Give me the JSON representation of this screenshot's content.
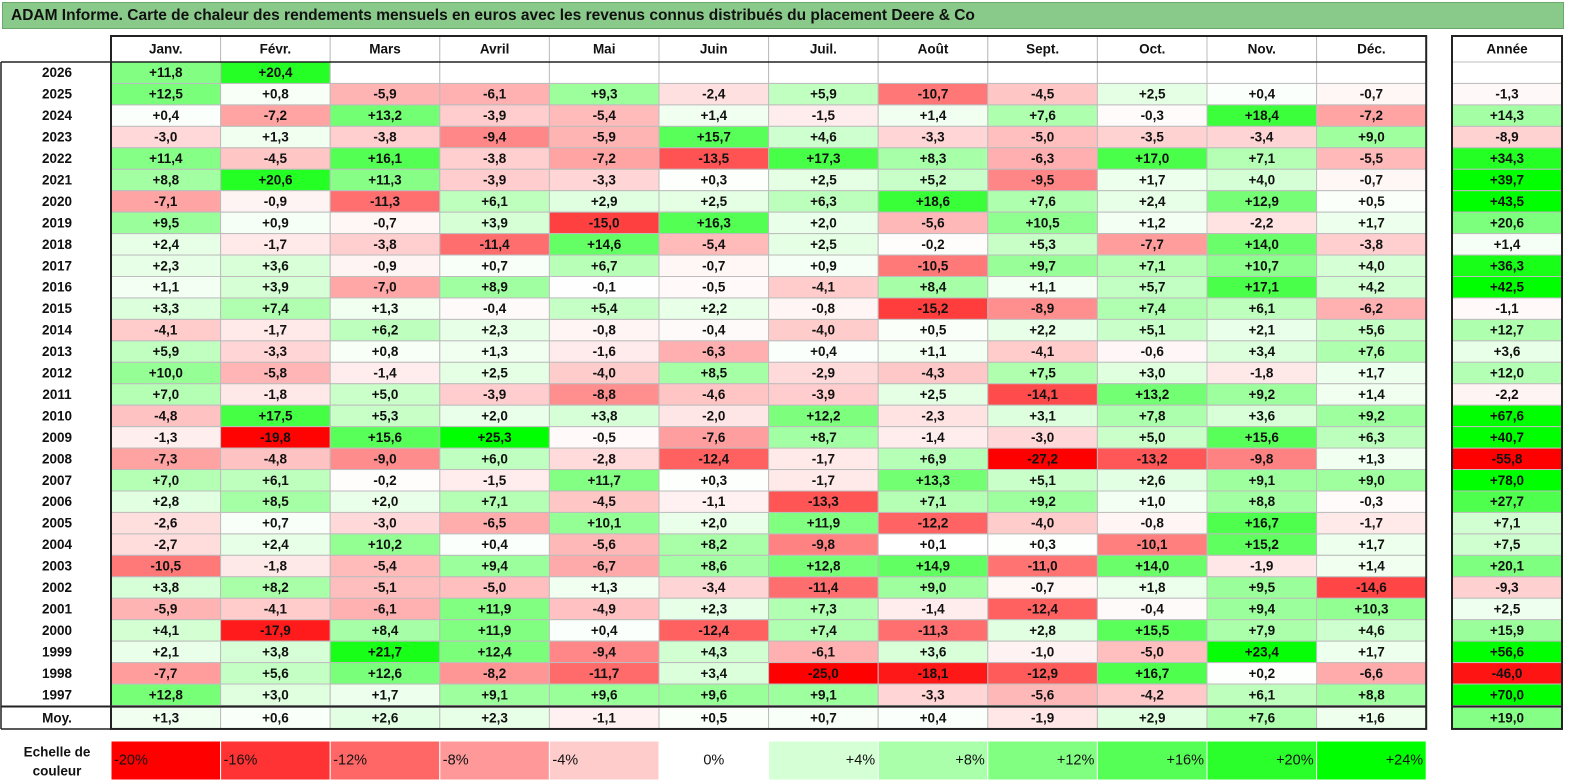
{
  "title": "ADAM Informe. Carte de chaleur des rendements mensuels en euros avec les revenus connus distribués du placement Deere & Co",
  "chart_data": {
    "type": "heatmap",
    "title": "ADAM Informe. Carte de chaleur des rendements mensuels en euros avec les revenus connus distribués du placement Deere & Co",
    "columns": [
      "Janv.",
      "Févr.",
      "Mars",
      "Avril",
      "Mai",
      "Juin",
      "Juil.",
      "Août",
      "Sept.",
      "Oct.",
      "Nov.",
      "Déc."
    ],
    "year_column": "Année",
    "rows": [
      {
        "label": "2026",
        "values": [
          11.8,
          20.4,
          null,
          null,
          null,
          null,
          null,
          null,
          null,
          null,
          null,
          null
        ],
        "annual": null
      },
      {
        "label": "2025",
        "values": [
          12.5,
          0.8,
          -5.9,
          -6.1,
          9.3,
          -2.4,
          5.9,
          -10.7,
          -4.5,
          2.5,
          0.4,
          -0.7
        ],
        "annual": -1.3
      },
      {
        "label": "2024",
        "values": [
          0.4,
          -7.2,
          13.2,
          -3.9,
          -5.4,
          1.4,
          -1.5,
          1.4,
          7.6,
          -0.3,
          18.4,
          -7.2
        ],
        "annual": 14.3
      },
      {
        "label": "2023",
        "values": [
          -3.0,
          1.3,
          -3.8,
          -9.4,
          -5.9,
          15.7,
          4.6,
          -3.3,
          -5.0,
          -3.5,
          -3.4,
          9.0
        ],
        "annual": -8.9
      },
      {
        "label": "2022",
        "values": [
          11.4,
          -4.5,
          16.1,
          -3.8,
          -7.2,
          -13.5,
          17.3,
          8.3,
          -6.3,
          17.0,
          7.1,
          -5.5
        ],
        "annual": 34.3
      },
      {
        "label": "2021",
        "values": [
          8.8,
          20.6,
          11.3,
          -3.9,
          -3.3,
          0.3,
          2.5,
          5.2,
          -9.5,
          1.7,
          4.0,
          -0.7
        ],
        "annual": 39.7
      },
      {
        "label": "2020",
        "values": [
          -7.1,
          -0.9,
          -11.3,
          6.1,
          2.9,
          2.5,
          6.3,
          18.6,
          7.6,
          2.4,
          12.9,
          0.5
        ],
        "annual": 43.5
      },
      {
        "label": "2019",
        "values": [
          9.5,
          0.9,
          -0.7,
          3.9,
          -15.0,
          16.3,
          2.0,
          -5.6,
          10.5,
          1.2,
          -2.2,
          1.7
        ],
        "annual": 20.6
      },
      {
        "label": "2018",
        "values": [
          2.4,
          -1.7,
          -3.8,
          -11.4,
          14.6,
          -5.4,
          2.5,
          -0.2,
          5.3,
          -7.7,
          14.0,
          -3.8
        ],
        "annual": 1.4
      },
      {
        "label": "2017",
        "values": [
          2.3,
          3.6,
          -0.9,
          0.7,
          6.7,
          -0.7,
          0.9,
          -10.5,
          9.7,
          7.1,
          10.7,
          4.0
        ],
        "annual": 36.3
      },
      {
        "label": "2016",
        "values": [
          1.1,
          3.9,
          -7.0,
          8.9,
          -0.1,
          -0.5,
          -4.1,
          8.4,
          1.1,
          5.7,
          17.1,
          4.2
        ],
        "annual": 42.5
      },
      {
        "label": "2015",
        "values": [
          3.3,
          7.4,
          1.3,
          -0.4,
          5.4,
          2.2,
          -0.8,
          -15.2,
          -8.9,
          7.4,
          6.1,
          -6.2
        ],
        "annual": -1.1
      },
      {
        "label": "2014",
        "values": [
          -4.1,
          -1.7,
          6.2,
          2.3,
          -0.8,
          -0.4,
          -4.0,
          0.5,
          2.2,
          5.1,
          2.1,
          5.6
        ],
        "annual": 12.7
      },
      {
        "label": "2013",
        "values": [
          5.9,
          -3.3,
          0.8,
          1.3,
          -1.6,
          -6.3,
          0.4,
          1.1,
          -4.1,
          -0.6,
          3.4,
          7.6
        ],
        "annual": 3.6
      },
      {
        "label": "2012",
        "values": [
          10.0,
          -5.8,
          -1.4,
          2.5,
          -4.0,
          8.5,
          -2.9,
          -4.3,
          7.5,
          3.0,
          -1.8,
          1.7
        ],
        "annual": 12.0
      },
      {
        "label": "2011",
        "values": [
          7.0,
          -1.8,
          5.0,
          -3.9,
          -8.8,
          -4.6,
          -3.9,
          2.5,
          -14.1,
          13.2,
          9.2,
          1.4
        ],
        "annual": -2.2
      },
      {
        "label": "2010",
        "values": [
          -4.8,
          17.5,
          5.3,
          2.0,
          3.8,
          -2.0,
          12.2,
          -2.3,
          3.1,
          7.8,
          3.6,
          9.2
        ],
        "annual": 67.6
      },
      {
        "label": "2009",
        "values": [
          -1.3,
          -19.8,
          15.6,
          25.3,
          -0.5,
          -7.6,
          8.7,
          -1.4,
          -3.0,
          5.0,
          15.6,
          6.3
        ],
        "annual": 40.7
      },
      {
        "label": "2008",
        "values": [
          -7.3,
          -4.8,
          -9.0,
          6.0,
          -2.8,
          -12.4,
          -1.7,
          6.9,
          -27.2,
          -13.2,
          -9.8,
          1.3
        ],
        "annual": -55.8
      },
      {
        "label": "2007",
        "values": [
          7.0,
          6.1,
          -0.2,
          -1.5,
          11.7,
          0.3,
          -1.7,
          13.3,
          5.1,
          2.6,
          9.1,
          9.0
        ],
        "annual": 78.0
      },
      {
        "label": "2006",
        "values": [
          2.8,
          8.5,
          2.0,
          7.1,
          -4.5,
          -1.1,
          -13.3,
          7.1,
          9.2,
          1.0,
          8.8,
          -0.3
        ],
        "annual": 27.7
      },
      {
        "label": "2005",
        "values": [
          -2.6,
          0.7,
          -3.0,
          -6.5,
          10.1,
          2.0,
          11.9,
          -12.2,
          -4.0,
          -0.8,
          16.7,
          -1.7
        ],
        "annual": 7.1
      },
      {
        "label": "2004",
        "values": [
          -2.7,
          2.4,
          10.2,
          0.4,
          -5.6,
          8.2,
          -9.8,
          0.1,
          0.3,
          -10.1,
          15.2,
          1.7
        ],
        "annual": 7.5
      },
      {
        "label": "2003",
        "values": [
          -10.5,
          -1.8,
          -5.4,
          9.4,
          -6.7,
          8.6,
          12.8,
          14.9,
          -11.0,
          14.0,
          -1.9,
          1.4
        ],
        "annual": 20.1
      },
      {
        "label": "2002",
        "values": [
          3.8,
          8.2,
          -5.1,
          -5.0,
          1.3,
          -3.4,
          -11.4,
          9.0,
          -0.7,
          1.8,
          9.5,
          -14.6
        ],
        "annual": -9.3
      },
      {
        "label": "2001",
        "values": [
          -5.9,
          -4.1,
          -6.1,
          11.9,
          -4.9,
          2.3,
          7.3,
          -1.4,
          -12.4,
          -0.4,
          9.4,
          10.3
        ],
        "annual": 2.5
      },
      {
        "label": "2000",
        "values": [
          4.1,
          -17.9,
          8.4,
          11.9,
          0.4,
          -12.4,
          7.4,
          -11.3,
          2.8,
          15.5,
          7.9,
          4.6
        ],
        "annual": 15.9
      },
      {
        "label": "1999",
        "values": [
          2.1,
          3.8,
          21.7,
          12.4,
          -9.4,
          4.3,
          -6.1,
          3.6,
          -1.0,
          -5.0,
          23.4,
          1.7
        ],
        "annual": 56.6
      },
      {
        "label": "1998",
        "values": [
          -7.7,
          5.6,
          12.6,
          -8.2,
          -11.7,
          3.4,
          -25.0,
          -18.1,
          -12.9,
          16.7,
          0.2,
          -6.6
        ],
        "annual": -46.0
      },
      {
        "label": "1997",
        "values": [
          12.8,
          3.0,
          1.7,
          9.1,
          9.6,
          9.6,
          9.1,
          -3.3,
          -5.6,
          -4.2,
          6.1,
          8.8
        ],
        "annual": 70.0
      }
    ],
    "average": {
      "label": "Moy.",
      "values": [
        1.3,
        0.6,
        2.6,
        2.3,
        -1.1,
        0.5,
        0.7,
        0.4,
        -1.9,
        2.9,
        7.6,
        1.6
      ],
      "annual": 19.0
    },
    "scale": {
      "label_line1": "Echelle de",
      "label_line2": "couleur",
      "labels": [
        "-20%",
        "-16%",
        "-12%",
        "-8%",
        "-4%",
        "0%",
        "+4%",
        "+8%",
        "+12%",
        "+16%",
        "+20%",
        "+24%"
      ],
      "values": [
        -20,
        -16,
        -12,
        -8,
        -4,
        0,
        4,
        8,
        12,
        16,
        20,
        24
      ]
    },
    "colors": {
      "negative_max": "#ff0000",
      "neutral": "#ffffff",
      "positive_max": "#00ff00",
      "title_bar": "#89c98a"
    },
    "number_format": "signed, one decimal, comma separator"
  }
}
